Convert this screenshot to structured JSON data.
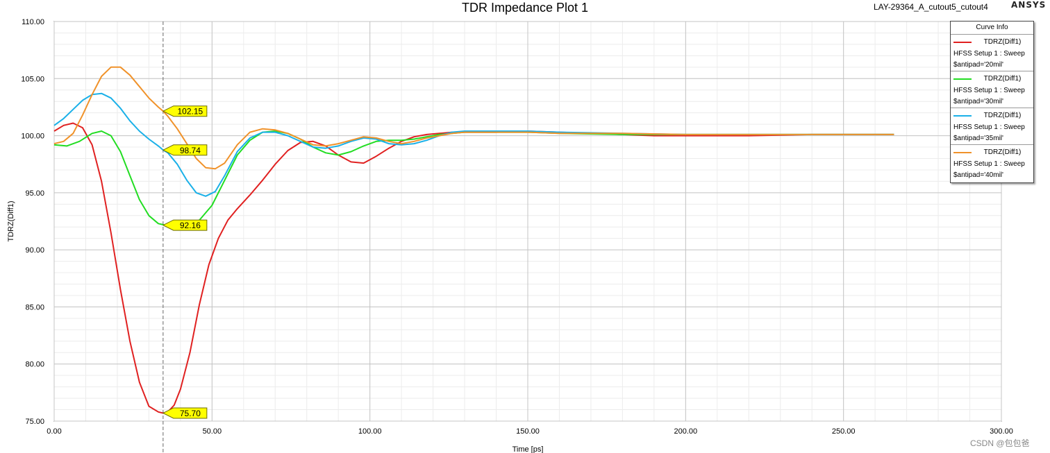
{
  "header": {
    "title": "TDR Impedance Plot 1",
    "design_name": "LAY-29364_A_cutout5_cutout4",
    "brand": "ANSYS"
  },
  "watermark": "CSDN @包包爸",
  "legend": {
    "title": "Curve Info",
    "entries": [
      {
        "trace": "TDRZ(Diff1)",
        "setup": "HFSS Setup 1 : Sweep",
        "variation": "$antipad='20mil'",
        "color": "#e02020"
      },
      {
        "trace": "TDRZ(Diff1)",
        "setup": "HFSS Setup 1 : Sweep",
        "variation": "$antipad='30mil'",
        "color": "#22dd22"
      },
      {
        "trace": "TDRZ(Diff1)",
        "setup": "HFSS Setup 1 : Sweep",
        "variation": "$antipad='35mil'",
        "color": "#1ab0e8"
      },
      {
        "trace": "TDRZ(Diff1)",
        "setup": "HFSS Setup 1 : Sweep",
        "variation": "$antipad='40mil'",
        "color": "#f0922a"
      }
    ]
  },
  "chart_data": {
    "type": "line",
    "title": "TDR Impedance Plot 1",
    "xlabel": "Time [ps]",
    "ylabel": "TDRZ(Diff1)",
    "xlim": [
      0,
      300
    ],
    "ylim": [
      75,
      110
    ],
    "xticks": [
      "0.00",
      "50.00",
      "100.00",
      "150.00",
      "200.00",
      "250.00",
      "300.00"
    ],
    "yticks": [
      "75.00",
      "80.00",
      "85.00",
      "90.00",
      "95.00",
      "100.00",
      "105.00",
      "110.00"
    ],
    "grid": true,
    "marker_x": 34.5,
    "markers": [
      {
        "value": "102.15",
        "y": 102.15,
        "color": "#ffff00"
      },
      {
        "value": "98.74",
        "y": 98.74,
        "color": "#ffff00"
      },
      {
        "value": "92.16",
        "y": 92.16,
        "color": "#ffff00"
      },
      {
        "value": "75.70",
        "y": 75.7,
        "color": "#ffff00"
      }
    ],
    "series": [
      {
        "name": "$antipad='20mil'",
        "color": "#e02020",
        "x": [
          0,
          3,
          6,
          9,
          12,
          15,
          18,
          21,
          24,
          27,
          30,
          33,
          34.5,
          36,
          38,
          40,
          43,
          46,
          49,
          52,
          55,
          58,
          62,
          66,
          70,
          74,
          78,
          82,
          86,
          90,
          94,
          98,
          102,
          106,
          110,
          114,
          118,
          122,
          126,
          130,
          140,
          150,
          160,
          170,
          180,
          190,
          200,
          220,
          240,
          266
        ],
        "y": [
          100.4,
          100.9,
          101.1,
          100.7,
          99.2,
          96.0,
          91.5,
          86.5,
          82.0,
          78.4,
          76.3,
          75.8,
          75.7,
          75.8,
          76.4,
          77.8,
          81.0,
          85.2,
          88.7,
          91.0,
          92.6,
          93.6,
          94.8,
          96.1,
          97.5,
          98.7,
          99.4,
          99.5,
          99.1,
          98.3,
          97.7,
          97.6,
          98.2,
          98.9,
          99.5,
          99.9,
          100.1,
          100.2,
          100.3,
          100.3,
          100.3,
          100.4,
          100.3,
          100.2,
          100.1,
          100.0,
          100.0,
          100.0,
          100.1,
          100.1
        ]
      },
      {
        "name": "$antipad='30mil'",
        "color": "#22dd22",
        "x": [
          0,
          4,
          8,
          12,
          15,
          18,
          21,
          24,
          27,
          30,
          33,
          34.5,
          38,
          42,
          46,
          50,
          54,
          58,
          62,
          66,
          70,
          74,
          78,
          82,
          86,
          90,
          94,
          98,
          102,
          106,
          110,
          114,
          118,
          122,
          126,
          130,
          140,
          150,
          160,
          180,
          200,
          220,
          240,
          266
        ],
        "y": [
          99.2,
          99.1,
          99.5,
          100.2,
          100.4,
          100.0,
          98.6,
          96.5,
          94.4,
          93.0,
          92.3,
          92.2,
          92.1,
          92.3,
          92.6,
          93.9,
          96.1,
          98.3,
          99.6,
          100.3,
          100.4,
          100.2,
          99.7,
          99.0,
          98.5,
          98.3,
          98.6,
          99.1,
          99.5,
          99.6,
          99.6,
          99.7,
          99.9,
          100.1,
          100.2,
          100.3,
          100.3,
          100.3,
          100.2,
          100.1,
          100.1,
          100.1,
          100.1,
          100.1
        ]
      },
      {
        "name": "$antipad='35mil'",
        "color": "#1ab0e8",
        "x": [
          0,
          3,
          6,
          9,
          12,
          15,
          18,
          21,
          24,
          27,
          30,
          33,
          34.5,
          36,
          39,
          42,
          45,
          48,
          51,
          54,
          58,
          62,
          66,
          70,
          74,
          78,
          82,
          86,
          90,
          94,
          98,
          102,
          106,
          110,
          114,
          118,
          122,
          126,
          130,
          140,
          150,
          160,
          180,
          200,
          220,
          240,
          266
        ],
        "y": [
          100.9,
          101.5,
          102.3,
          103.1,
          103.6,
          103.7,
          103.3,
          102.4,
          101.3,
          100.4,
          99.7,
          99.1,
          98.74,
          98.5,
          97.5,
          96.1,
          95.0,
          94.7,
          95.1,
          96.5,
          98.6,
          99.8,
          100.3,
          100.3,
          100.0,
          99.5,
          99.0,
          98.9,
          99.1,
          99.5,
          99.8,
          99.7,
          99.3,
          99.2,
          99.3,
          99.6,
          100.0,
          100.3,
          100.4,
          100.4,
          100.4,
          100.3,
          100.2,
          100.1,
          100.1,
          100.1,
          100.1
        ]
      },
      {
        "name": "$antipad='40mil'",
        "color": "#f0922a",
        "x": [
          0,
          3,
          6,
          9,
          12,
          15,
          18,
          21,
          24,
          27,
          30,
          33,
          34.5,
          36,
          39,
          42,
          45,
          48,
          51,
          54,
          58,
          62,
          66,
          70,
          74,
          78,
          82,
          86,
          90,
          94,
          98,
          102,
          106,
          110,
          114,
          118,
          122,
          126,
          130,
          140,
          150,
          160,
          180,
          200,
          220,
          240,
          266
        ],
        "y": [
          99.3,
          99.5,
          100.2,
          101.8,
          103.6,
          105.2,
          106.0,
          106.0,
          105.3,
          104.3,
          103.3,
          102.5,
          102.15,
          101.7,
          100.6,
          99.3,
          98.0,
          97.2,
          97.1,
          97.6,
          99.2,
          100.3,
          100.6,
          100.5,
          100.2,
          99.7,
          99.2,
          99.1,
          99.3,
          99.6,
          99.9,
          99.8,
          99.5,
          99.3,
          99.5,
          99.8,
          100.0,
          100.2,
          100.3,
          100.3,
          100.3,
          100.2,
          100.2,
          100.1,
          100.1,
          100.1,
          100.1
        ]
      }
    ]
  }
}
